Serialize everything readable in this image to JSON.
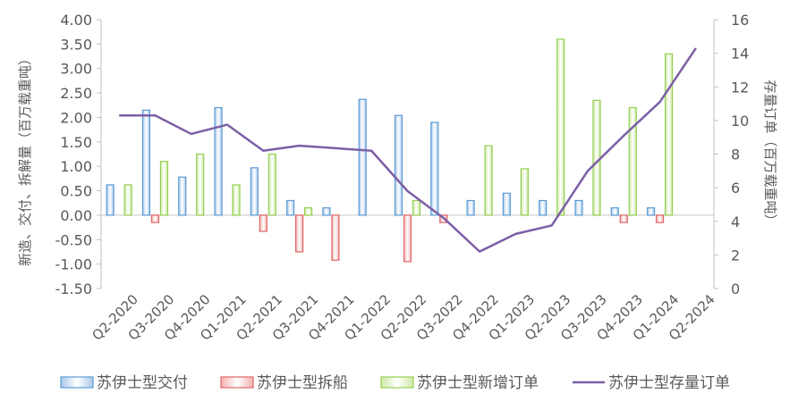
{
  "chart_data": {
    "type": "bar",
    "categories": [
      "Q2-2020",
      "Q3-2020",
      "Q4-2020",
      "Q1-2021",
      "Q2-2021",
      "Q3-2021",
      "Q4-2021",
      "Q1-2022",
      "Q2-2022",
      "Q3-2022",
      "Q4-2022",
      "Q1-2023",
      "Q2-2023",
      "Q3-2023",
      "Q4-2023",
      "Q1-2024",
      "Q2-2024"
    ],
    "y_left": {
      "label": "新造、交付、拆解量（百万载重吨）",
      "range": [
        -1.5,
        4.0
      ],
      "ticks": [
        "-1.50",
        "-1.00",
        "-0.50",
        "0.00",
        "0.50",
        "1.00",
        "1.50",
        "2.00",
        "2.50",
        "3.00",
        "3.50",
        "4.00"
      ]
    },
    "y_right": {
      "label": "存量订单（百万载重吨）",
      "range": [
        0,
        16
      ],
      "ticks": [
        "0",
        "2",
        "4",
        "6",
        "8",
        "10",
        "12",
        "14",
        "16"
      ]
    },
    "series": [
      {
        "name": "苏伊士型交付",
        "axis": "left",
        "kind": "bar",
        "color": "#5B9BD5",
        "values": [
          0.62,
          2.15,
          0.78,
          2.2,
          0.97,
          0.3,
          0.15,
          2.37,
          2.04,
          1.9,
          0.3,
          0.45,
          0.3,
          0.3,
          0.15,
          0.15,
          0
        ]
      },
      {
        "name": "苏伊士型拆船",
        "axis": "left",
        "kind": "bar",
        "color": "#E06666",
        "values": [
          0,
          -0.15,
          0,
          0,
          -0.33,
          -0.75,
          -0.92,
          0,
          -0.95,
          -0.15,
          0,
          0,
          0,
          0,
          -0.15,
          -0.15,
          0
        ]
      },
      {
        "name": "苏伊士型新增订单",
        "axis": "left",
        "kind": "bar",
        "color": "#92D050",
        "values": [
          0.62,
          1.1,
          1.25,
          0.62,
          1.25,
          0.15,
          0,
          0,
          0.3,
          0,
          1.42,
          0.95,
          3.6,
          2.35,
          2.2,
          3.3,
          0
        ]
      },
      {
        "name": "苏伊士型存量订单",
        "axis": "right",
        "kind": "line",
        "color": "#7C5FA6",
        "values": [
          10.3,
          10.3,
          9.2,
          9.75,
          8.2,
          8.5,
          8.35,
          8.2,
          5.8,
          4.2,
          2.2,
          3.25,
          3.75,
          7.0,
          9.1,
          11.1,
          14.3
        ]
      }
    ],
    "legend_position": "bottom",
    "grid": false
  }
}
